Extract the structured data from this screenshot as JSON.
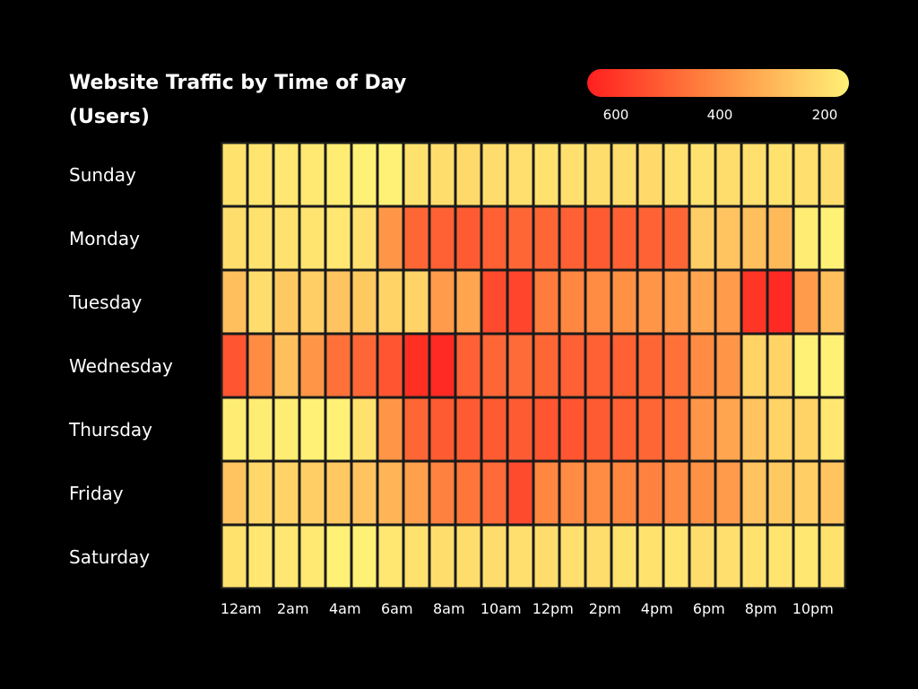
{
  "chart_data": {
    "type": "heatmap",
    "title": "Website Traffic by Time of Day (Users)",
    "rows": [
      "Sunday",
      "Monday",
      "Tuesday",
      "Wednesday",
      "Thursday",
      "Friday",
      "Saturday"
    ],
    "columns": [
      "12am",
      "1am",
      "2am",
      "3am",
      "4am",
      "5am",
      "6am",
      "7am",
      "8am",
      "9am",
      "10am",
      "11am",
      "12pm",
      "1pm",
      "2pm",
      "3pm",
      "4pm",
      "5pm",
      "6pm",
      "7pm",
      "8pm",
      "9pm",
      "10pm",
      "11pm"
    ],
    "x_tick_labels": [
      "12am",
      "2am",
      "4am",
      "6am",
      "8am",
      "10am",
      "12pm",
      "2pm",
      "4pm",
      "6pm",
      "8pm",
      "10pm"
    ],
    "values": [
      [
        230,
        225,
        220,
        215,
        210,
        200,
        195,
        230,
        240,
        245,
        240,
        235,
        230,
        235,
        240,
        240,
        245,
        235,
        230,
        240,
        235,
        230,
        235,
        240
      ],
      [
        240,
        230,
        230,
        225,
        220,
        235,
        380,
        470,
        480,
        490,
        480,
        470,
        470,
        480,
        490,
        480,
        475,
        470,
        270,
        290,
        300,
        310,
        210,
        200
      ],
      [
        300,
        240,
        280,
        270,
        290,
        280,
        260,
        260,
        370,
        350,
        520,
        530,
        430,
        410,
        400,
        390,
        380,
        370,
        350,
        370,
        560,
        580,
        370,
        300
      ],
      [
        500,
        400,
        300,
        380,
        450,
        470,
        500,
        570,
        580,
        480,
        470,
        460,
        470,
        480,
        480,
        480,
        470,
        450,
        400,
        380,
        260,
        260,
        200,
        200
      ],
      [
        210,
        210,
        210,
        200,
        190,
        230,
        380,
        470,
        490,
        490,
        490,
        490,
        500,
        500,
        490,
        480,
        470,
        450,
        380,
        350,
        290,
        260,
        260,
        220
      ],
      [
        290,
        250,
        260,
        270,
        280,
        290,
        320,
        360,
        420,
        440,
        460,
        520,
        410,
        400,
        400,
        410,
        420,
        400,
        390,
        370,
        290,
        280,
        270,
        290
      ],
      [
        230,
        220,
        220,
        215,
        200,
        190,
        220,
        230,
        240,
        240,
        240,
        235,
        240,
        235,
        240,
        230,
        230,
        225,
        240,
        235,
        230,
        225,
        220,
        230
      ]
    ],
    "color_scale": {
      "min": 200,
      "max": 600,
      "low_color": "#fff176",
      "mid_color": "#ff8c42",
      "high_color": "#ff1f1f"
    },
    "legend": {
      "ticks": [
        "600",
        "400",
        "200"
      ],
      "placement": "top-right"
    }
  }
}
